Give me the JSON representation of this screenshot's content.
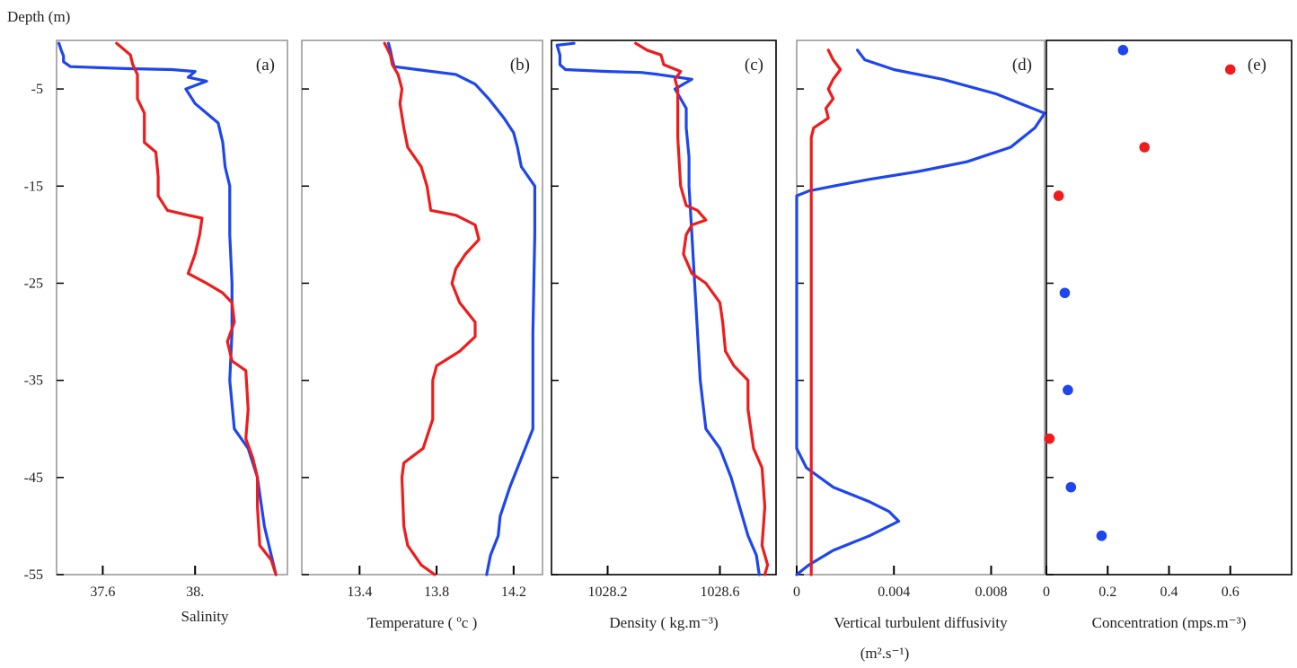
{
  "figure": {
    "depth_axis_title": "Depth (m)"
  },
  "colors": {
    "series_a": "#ee1c1c",
    "series_b": "#1e46ee",
    "frame": "#000000"
  },
  "depth_ticks": [
    -5,
    -15,
    -25,
    -35,
    -45,
    -55
  ],
  "chart_data": [
    {
      "type": "line",
      "panel_label": "(a)",
      "xlabel": "Salinity",
      "xlim": [
        37.4,
        38.4
      ],
      "xticks": [
        {
          "value": 37.6,
          "label": "37.6"
        },
        {
          "value": 38.0,
          "label": "38."
        }
      ],
      "ylim": [
        -55,
        0
      ],
      "series": [
        {
          "color": "#1e46ee",
          "points": [
            [
              37.41,
              -0.3
            ],
            [
              37.42,
              -1.0
            ],
            [
              37.43,
              -1.6
            ],
            [
              37.43,
              -2.2
            ],
            [
              37.46,
              -2.7
            ],
            [
              37.7,
              -2.9
            ],
            [
              37.9,
              -3.0
            ],
            [
              38.0,
              -3.2
            ],
            [
              37.97,
              -3.8
            ],
            [
              38.05,
              -4.2
            ],
            [
              37.96,
              -5.0
            ],
            [
              38.0,
              -6.5
            ],
            [
              38.1,
              -8.5
            ],
            [
              38.12,
              -10.5
            ],
            [
              38.13,
              -13.0
            ],
            [
              38.15,
              -15.0
            ],
            [
              38.15,
              -20.0
            ],
            [
              38.16,
              -25.0
            ],
            [
              38.16,
              -30.0
            ],
            [
              38.15,
              -35.0
            ],
            [
              38.17,
              -40.0
            ],
            [
              38.23,
              -42.0
            ],
            [
              38.27,
              -45.0
            ],
            [
              38.3,
              -50.0
            ],
            [
              38.33,
              -53.0
            ],
            [
              38.35,
              -55.0
            ]
          ]
        },
        {
          "color": "#ee1c1c",
          "points": [
            [
              37.66,
              -0.3
            ],
            [
              37.72,
              -1.5
            ],
            [
              37.73,
              -2.5
            ],
            [
              37.75,
              -3.5
            ],
            [
              37.75,
              -6.0
            ],
            [
              37.78,
              -7.5
            ],
            [
              37.78,
              -10.5
            ],
            [
              37.83,
              -11.5
            ],
            [
              37.84,
              -14.0
            ],
            [
              37.84,
              -16.0
            ],
            [
              37.88,
              -17.5
            ],
            [
              37.97,
              -18.0
            ],
            [
              38.03,
              -18.3
            ],
            [
              38.02,
              -20.0
            ],
            [
              38.0,
              -22.0
            ],
            [
              37.97,
              -24.0
            ],
            [
              38.05,
              -25.0
            ],
            [
              38.12,
              -26.0
            ],
            [
              38.16,
              -27.0
            ],
            [
              38.17,
              -29.0
            ],
            [
              38.14,
              -31.0
            ],
            [
              38.16,
              -33.0
            ],
            [
              38.22,
              -34.0
            ],
            [
              38.23,
              -38.0
            ],
            [
              38.22,
              -41.0
            ],
            [
              38.25,
              -43.0
            ],
            [
              38.27,
              -45.0
            ],
            [
              38.27,
              -48.0
            ],
            [
              38.28,
              -52.0
            ],
            [
              38.33,
              -53.5
            ],
            [
              38.35,
              -55.0
            ]
          ]
        }
      ]
    },
    {
      "type": "line",
      "panel_label": "(b)",
      "xlabel": "Temperature ( ºc )",
      "xlim": [
        13.1,
        14.35
      ],
      "xticks": [
        {
          "value": 13.4,
          "label": "13.4"
        },
        {
          "value": 13.8,
          "label": "13.8"
        },
        {
          "value": 14.2,
          "label": "14.2"
        }
      ],
      "ylim": [
        -55,
        0
      ],
      "series": [
        {
          "color": "#1e46ee",
          "points": [
            [
              13.55,
              -0.3
            ],
            [
              13.56,
              -1.0
            ],
            [
              13.57,
              -2.0
            ],
            [
              13.58,
              -2.7
            ],
            [
              13.7,
              -3.0
            ],
            [
              13.9,
              -3.5
            ],
            [
              14.0,
              -4.5
            ],
            [
              14.07,
              -6.0
            ],
            [
              14.15,
              -8.0
            ],
            [
              14.2,
              -9.5
            ],
            [
              14.22,
              -11.0
            ],
            [
              14.24,
              -13.0
            ],
            [
              14.31,
              -15.0
            ],
            [
              14.31,
              -20.0
            ],
            [
              14.3,
              -30.0
            ],
            [
              14.3,
              -40.0
            ],
            [
              14.25,
              -42.5
            ],
            [
              14.18,
              -46.0
            ],
            [
              14.13,
              -49.0
            ],
            [
              14.12,
              -51.0
            ],
            [
              14.08,
              -53.0
            ],
            [
              14.06,
              -55.0
            ]
          ]
        },
        {
          "color": "#ee1c1c",
          "points": [
            [
              13.53,
              -0.3
            ],
            [
              13.56,
              -1.5
            ],
            [
              13.57,
              -2.5
            ],
            [
              13.6,
              -3.5
            ],
            [
              13.62,
              -5.0
            ],
            [
              13.61,
              -6.5
            ],
            [
              13.63,
              -9.0
            ],
            [
              13.65,
              -11.0
            ],
            [
              13.72,
              -13.0
            ],
            [
              13.75,
              -15.0
            ],
            [
              13.77,
              -17.5
            ],
            [
              13.9,
              -18.0
            ],
            [
              14.0,
              -19.0
            ],
            [
              14.02,
              -20.5
            ],
            [
              13.95,
              -22.0
            ],
            [
              13.9,
              -23.5
            ],
            [
              13.88,
              -25.0
            ],
            [
              13.92,
              -27.0
            ],
            [
              14.0,
              -29.0
            ],
            [
              14.0,
              -30.5
            ],
            [
              13.92,
              -32.0
            ],
            [
              13.8,
              -33.5
            ],
            [
              13.78,
              -35.0
            ],
            [
              13.78,
              -39.0
            ],
            [
              13.73,
              -42.0
            ],
            [
              13.63,
              -43.5
            ],
            [
              13.62,
              -45.0
            ],
            [
              13.63,
              -50.0
            ],
            [
              13.65,
              -52.0
            ],
            [
              13.72,
              -54.0
            ],
            [
              13.79,
              -55.0
            ]
          ]
        }
      ]
    },
    {
      "type": "line",
      "panel_label": "(c)",
      "xlabel": "Density ( kg.m⁻³)",
      "xlim": [
        1028.0,
        1028.8
      ],
      "xticks": [
        {
          "value": 1028.2,
          "label": "1028.2"
        },
        {
          "value": 1028.6,
          "label": "1028.6"
        }
      ],
      "ylim": [
        -55,
        0
      ],
      "series": [
        {
          "color": "#1e46ee",
          "points": [
            [
              1028.08,
              -0.3
            ],
            [
              1028.02,
              -0.5
            ],
            [
              1028.03,
              -1.5
            ],
            [
              1028.03,
              -2.5
            ],
            [
              1028.05,
              -3.0
            ],
            [
              1028.2,
              -3.2
            ],
            [
              1028.32,
              -3.3
            ],
            [
              1028.38,
              -3.5
            ],
            [
              1028.5,
              -4.0
            ],
            [
              1028.44,
              -5.0
            ],
            [
              1028.46,
              -6.0
            ],
            [
              1028.48,
              -7.0
            ],
            [
              1028.48,
              -9.0
            ],
            [
              1028.49,
              -12.0
            ],
            [
              1028.49,
              -15.0
            ],
            [
              1028.5,
              -20.0
            ],
            [
              1028.51,
              -25.0
            ],
            [
              1028.52,
              -30.0
            ],
            [
              1028.53,
              -35.0
            ],
            [
              1028.55,
              -40.0
            ],
            [
              1028.6,
              -42.0
            ],
            [
              1028.64,
              -45.0
            ],
            [
              1028.67,
              -48.0
            ],
            [
              1028.7,
              -51.0
            ],
            [
              1028.73,
              -53.0
            ],
            [
              1028.74,
              -55.0
            ]
          ]
        },
        {
          "color": "#ee1c1c",
          "points": [
            [
              1028.3,
              -0.3
            ],
            [
              1028.34,
              -1.0
            ],
            [
              1028.39,
              -1.5
            ],
            [
              1028.4,
              -2.5
            ],
            [
              1028.46,
              -3.2
            ],
            [
              1028.44,
              -4.0
            ],
            [
              1028.45,
              -5.0
            ],
            [
              1028.45,
              -10.0
            ],
            [
              1028.46,
              -15.0
            ],
            [
              1028.48,
              -17.0
            ],
            [
              1028.52,
              -17.5
            ],
            [
              1028.55,
              -18.5
            ],
            [
              1028.5,
              -19.0
            ],
            [
              1028.48,
              -20.0
            ],
            [
              1028.47,
              -22.0
            ],
            [
              1028.5,
              -24.0
            ],
            [
              1028.55,
              -25.0
            ],
            [
              1028.6,
              -27.0
            ],
            [
              1028.61,
              -29.0
            ],
            [
              1028.62,
              -32.0
            ],
            [
              1028.65,
              -33.5
            ],
            [
              1028.7,
              -35.0
            ],
            [
              1028.7,
              -38.0
            ],
            [
              1028.71,
              -40.0
            ],
            [
              1028.72,
              -42.0
            ],
            [
              1028.75,
              -44.0
            ],
            [
              1028.76,
              -48.0
            ],
            [
              1028.75,
              -52.0
            ],
            [
              1028.77,
              -54.0
            ],
            [
              1028.76,
              -55.0
            ]
          ]
        }
      ]
    },
    {
      "type": "line",
      "panel_label": "(d)",
      "xlabel": "Vertical turbulent diffusivity",
      "xlabel2": "(m².s⁻¹)",
      "xlim": [
        0,
        0.0102
      ],
      "xticks": [
        {
          "value": 0,
          "label": "0"
        },
        {
          "value": 0.004,
          "label": "0.004"
        },
        {
          "value": 0.008,
          "label": "0.008"
        }
      ],
      "ylim": [
        -55,
        0
      ],
      "series": [
        {
          "color": "#1e46ee",
          "points": [
            [
              0.0025,
              -1.0
            ],
            [
              0.0028,
              -2.0
            ],
            [
              0.004,
              -3.0
            ],
            [
              0.006,
              -4.0
            ],
            [
              0.0082,
              -5.5
            ],
            [
              0.0097,
              -7.0
            ],
            [
              0.0102,
              -7.5
            ],
            [
              0.0098,
              -9.0
            ],
            [
              0.0088,
              -11.0
            ],
            [
              0.007,
              -12.5
            ],
            [
              0.005,
              -13.5
            ],
            [
              0.003,
              -14.3
            ],
            [
              0.0015,
              -15.0
            ],
            [
              0.0005,
              -15.5
            ],
            [
              0.0,
              -16.0
            ],
            [
              0.0,
              -20.0
            ],
            [
              0.0,
              -35.0
            ],
            [
              0.0,
              -42.0
            ],
            [
              0.0004,
              -44.0
            ],
            [
              0.0015,
              -46.0
            ],
            [
              0.003,
              -47.5
            ],
            [
              0.0038,
              -48.5
            ],
            [
              0.0042,
              -49.5
            ],
            [
              0.003,
              -51.0
            ],
            [
              0.0015,
              -52.5
            ],
            [
              0.0005,
              -54.0
            ],
            [
              0.0,
              -55.0
            ]
          ]
        },
        {
          "color": "#ee1c1c",
          "points": [
            [
              0.0013,
              -1.0
            ],
            [
              0.0015,
              -2.0
            ],
            [
              0.0018,
              -3.0
            ],
            [
              0.0015,
              -4.0
            ],
            [
              0.0013,
              -5.0
            ],
            [
              0.0015,
              -6.0
            ],
            [
              0.0012,
              -7.0
            ],
            [
              0.0013,
              -8.0
            ],
            [
              0.0007,
              -9.0
            ],
            [
              0.0006,
              -10.0
            ],
            [
              0.0006,
              -20.0
            ],
            [
              0.0006,
              -40.0
            ],
            [
              0.0006,
              -55.0
            ]
          ]
        }
      ]
    },
    {
      "type": "scatter",
      "panel_label": "(e)",
      "xlabel": "Concentration (mps.m⁻³)",
      "xlim": [
        0,
        0.8
      ],
      "xticks": [
        {
          "value": 0,
          "label": "0"
        },
        {
          "value": 0.2,
          "label": "0.2"
        },
        {
          "value": 0.4,
          "label": "0.4"
        },
        {
          "value": 0.6,
          "label": "0.6"
        }
      ],
      "ylim": [
        -55,
        0
      ],
      "series": [
        {
          "color": "#1e46ee",
          "points": [
            [
              0.25,
              -1.0
            ],
            [
              0.06,
              -26.0
            ],
            [
              0.07,
              -36.0
            ],
            [
              0.08,
              -46.0
            ],
            [
              0.18,
              -51.0
            ]
          ]
        },
        {
          "color": "#ee1c1c",
          "points": [
            [
              0.6,
              -3.0
            ],
            [
              0.32,
              -11.0
            ],
            [
              0.04,
              -16.0
            ],
            [
              0.01,
              -41.0
            ]
          ]
        }
      ]
    }
  ]
}
